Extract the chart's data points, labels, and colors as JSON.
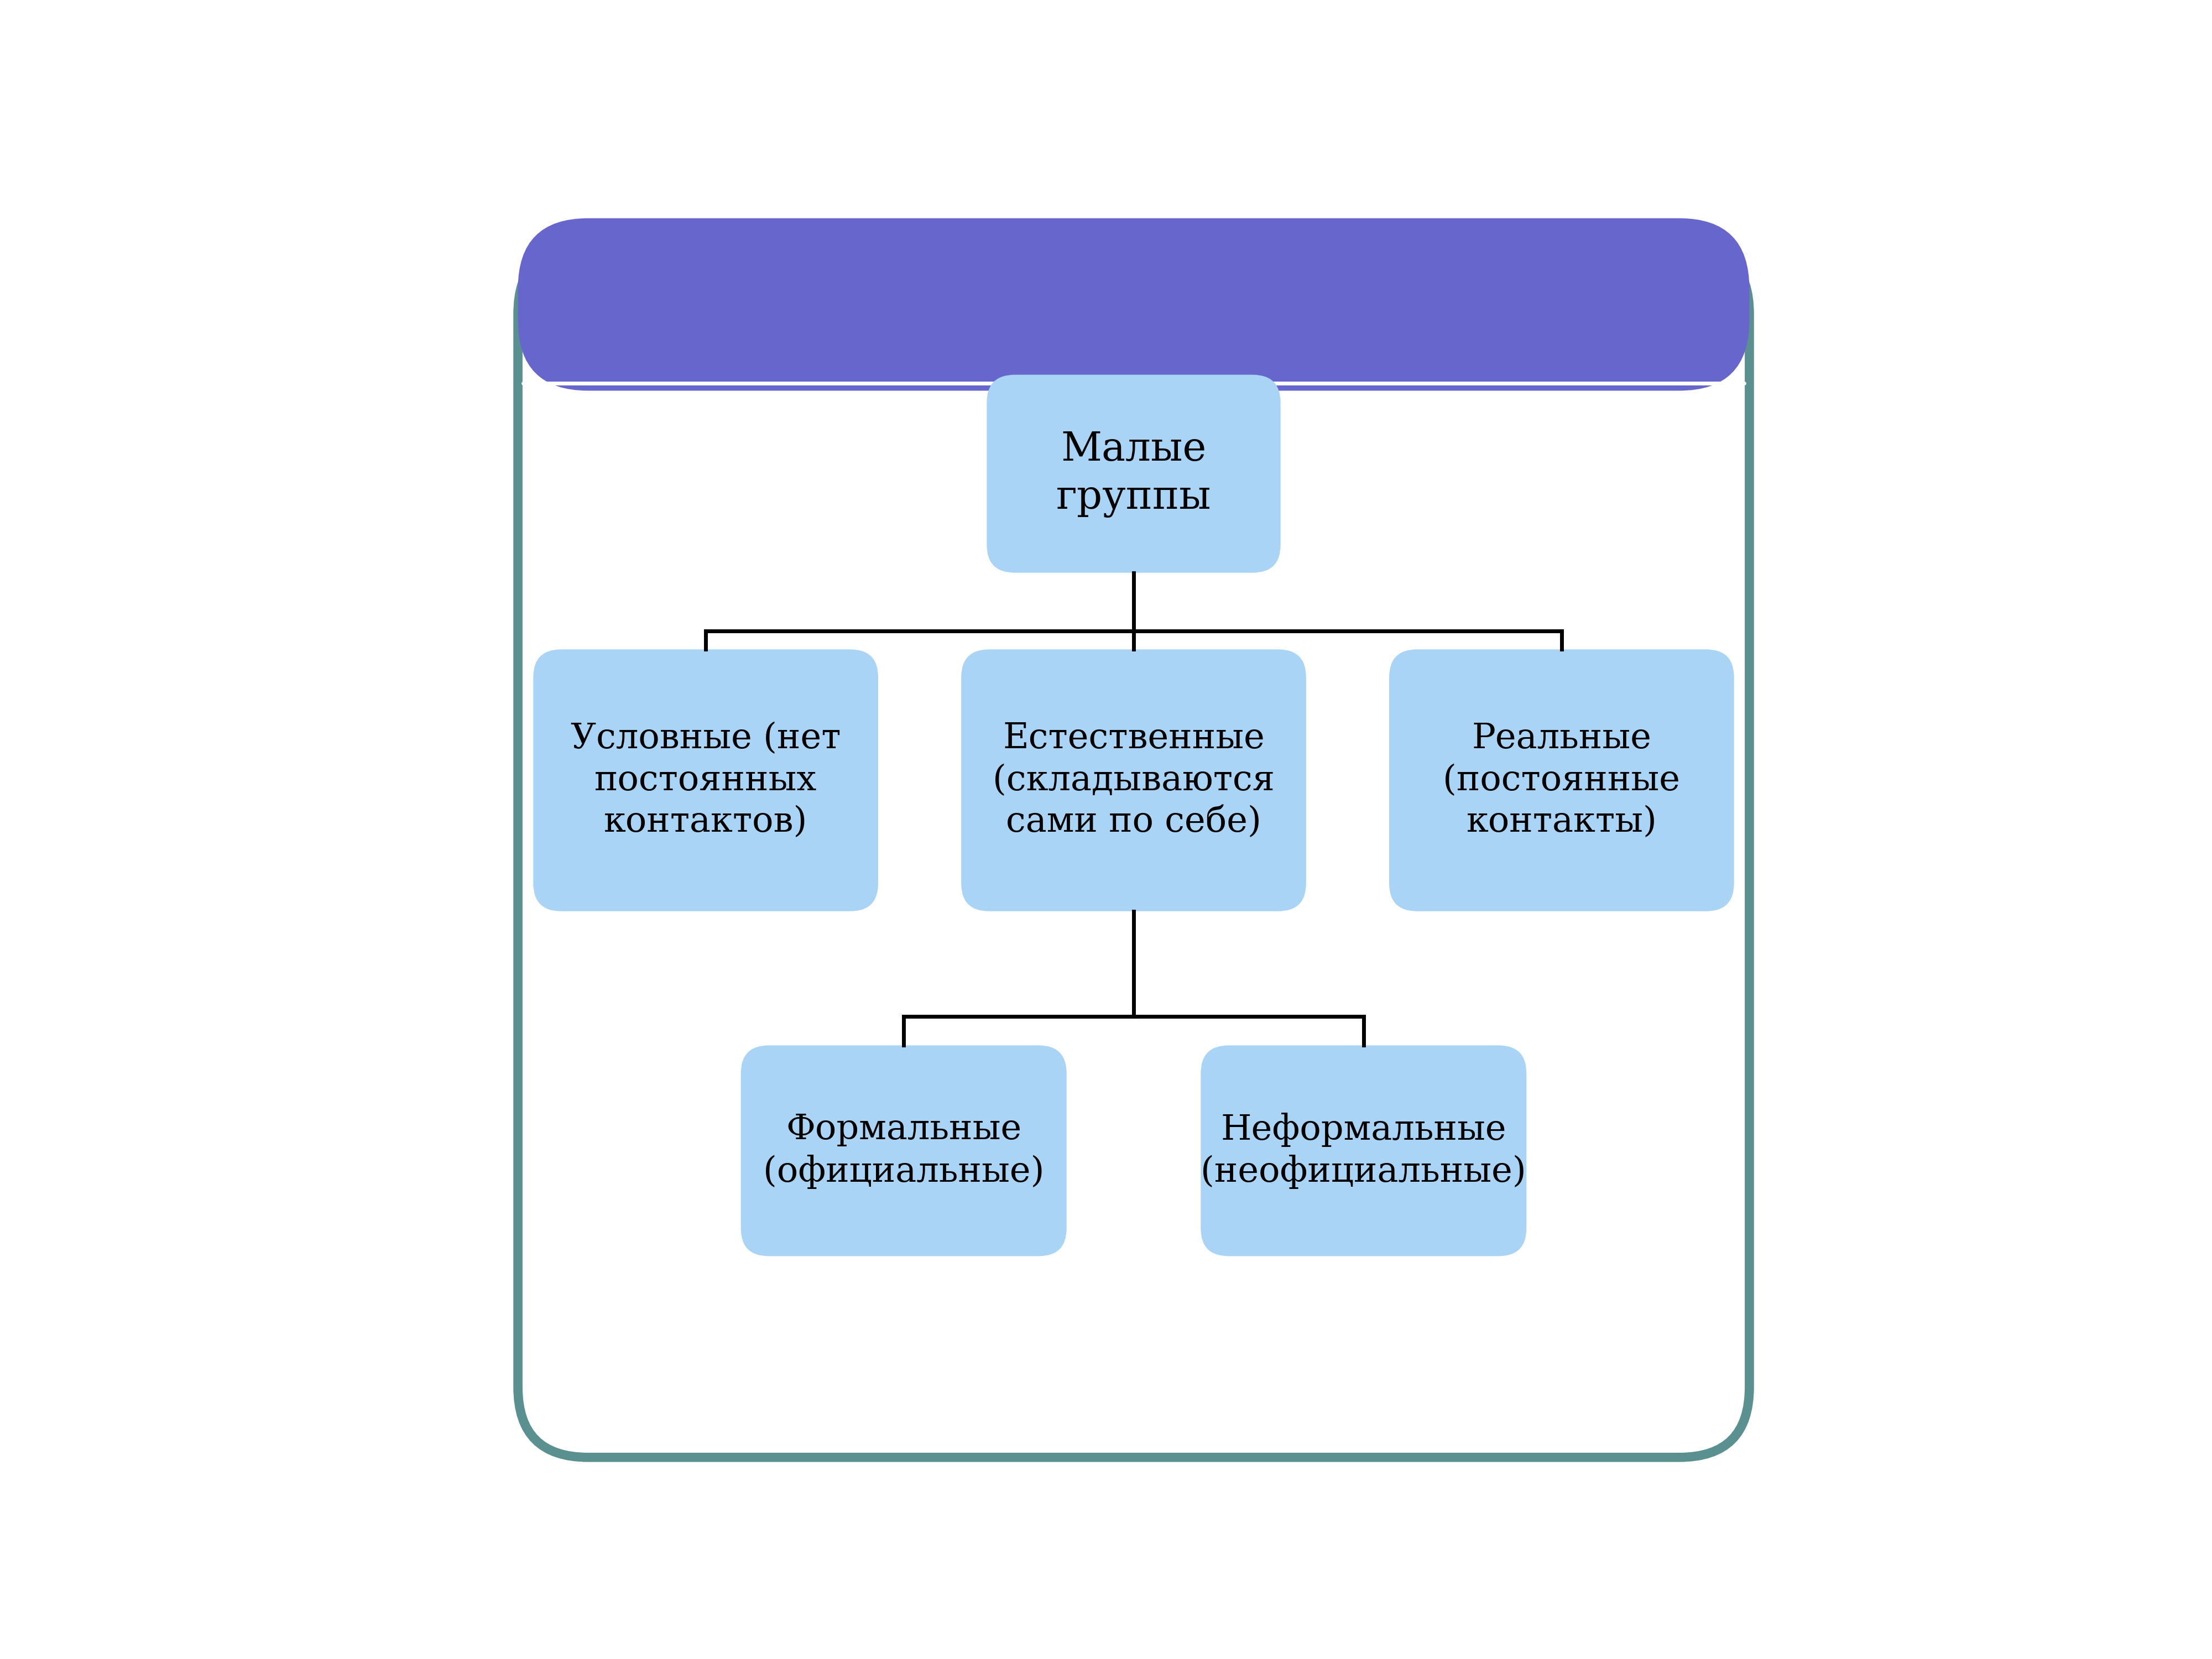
{
  "background_color": "#ffffff",
  "outer_border_color": "#5b9090",
  "outer_border_linewidth": 12,
  "header_color": "#6666cc",
  "box_fill_color": "#aad4f5",
  "line_color": "#000000",
  "line_width": 5,
  "root_text": "Малые\nгруппы",
  "level1_texts": [
    "Условные (нет\nпостоянных\nконтактов)",
    "Естественные\n(складываются\nсами по себе)",
    "Реальные\n(постоянные\nконтакты)"
  ],
  "level2_texts": [
    "Формальные\n(официальные)",
    "Неформальные\n(неофициальные)"
  ],
  "font_size_root": 52,
  "font_size_l1": 46,
  "font_size_l2": 46,
  "font_family": "DejaVu Serif"
}
